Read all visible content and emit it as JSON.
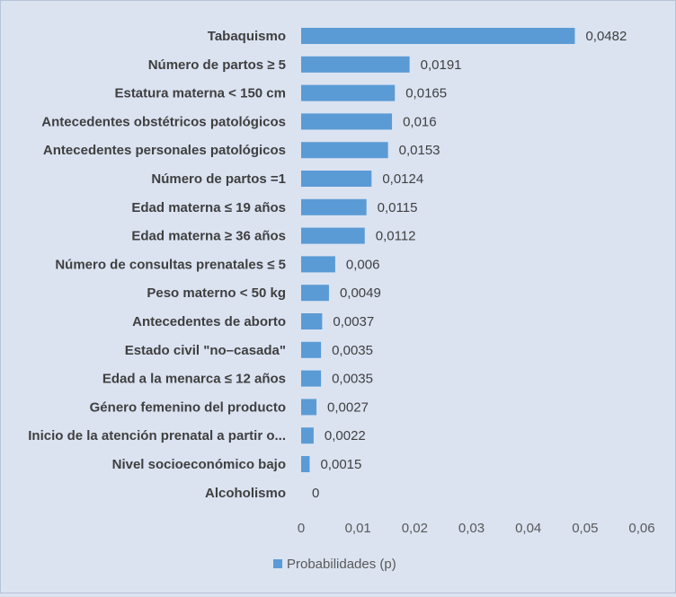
{
  "chart_data": {
    "type": "bar",
    "orientation": "horizontal",
    "categories": [
      "Tabaquismo",
      "Número de partos ≥ 5",
      "Estatura materna < 150 cm",
      "Antecedentes obstétricos patológicos",
      "Antecedentes personales patológicos",
      "Número de partos =1",
      "Edad materna ≤ 19 años",
      "Edad materna ≥ 36 años",
      "Número de consultas prenatales ≤ 5",
      "Peso materno < 50 kg",
      "Antecedentes de aborto",
      "Estado civil \"no–casada\"",
      "Edad a la menarca ≤ 12 años",
      "Género femenino del producto",
      "Inicio de la atención prenatal a partir o...",
      "Nivel socioeconómico bajo",
      "Alcoholismo"
    ],
    "series": [
      {
        "name": "Probabilidades (p)",
        "values": [
          0.0482,
          0.0191,
          0.0165,
          0.016,
          0.0153,
          0.0124,
          0.0115,
          0.0112,
          0.006,
          0.0049,
          0.0037,
          0.0035,
          0.0035,
          0.0027,
          0.0022,
          0.0015,
          0
        ]
      }
    ],
    "data_labels": [
      "0,0482",
      "0,0191",
      "0,0165",
      "0,016",
      "0,0153",
      "0,0124",
      "0,0115",
      "0,0112",
      "0,006",
      "0,0049",
      "0,0037",
      "0,0035",
      "0,0035",
      "0,0027",
      "0,0022",
      "0,0015",
      "0"
    ],
    "x_ticks": [
      "0",
      "0,01",
      "0,02",
      "0,03",
      "0,04",
      "0,05",
      "0,06"
    ],
    "xlim": [
      0,
      0.06
    ],
    "title": "",
    "xlabel": "",
    "ylabel": "",
    "grid": false,
    "legend_position": "bottom",
    "colors": {
      "bar": "#5b9bd5",
      "background": "#dbe3f1",
      "text": "#3f3f3f",
      "tick": "#595959"
    }
  }
}
